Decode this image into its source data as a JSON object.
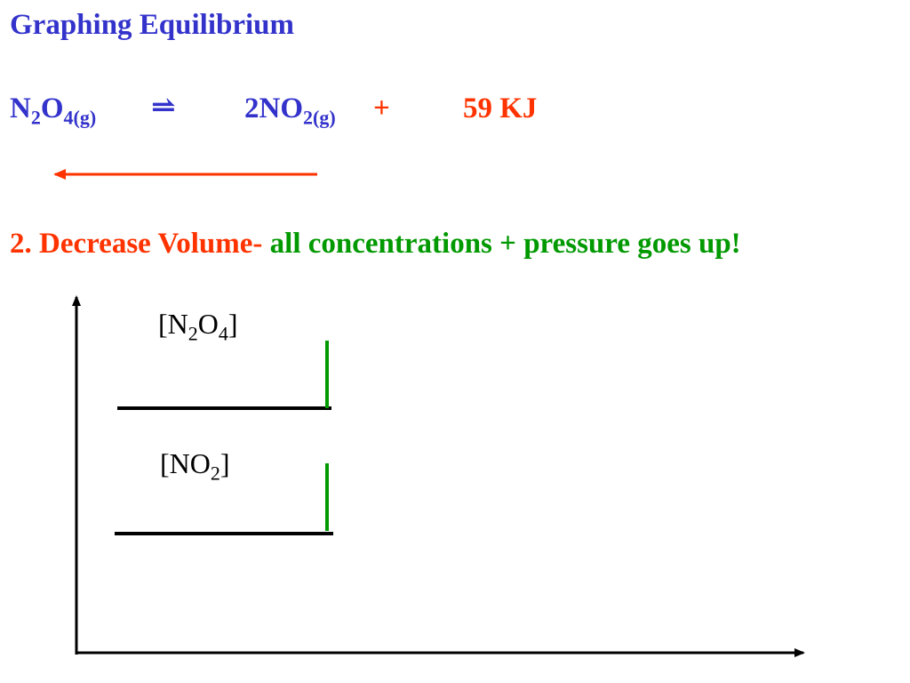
{
  "title": "Graphing Equilibrium",
  "equation": {
    "reactant_base": "N",
    "reactant_sub1": "2",
    "reactant_mid": "O",
    "reactant_sub2": "4(g)",
    "arrow": "⥬",
    "product_base": "2NO",
    "product_sub": "2(g)",
    "plus": "+",
    "energy": "59 KJ"
  },
  "shift_direction": "left",
  "statement": {
    "prefix": "2. Decrease Volume-",
    "suffix": "all concentrations + pressure goes up!"
  },
  "graph": {
    "label_n2o4": {
      "open": "[N",
      "sub1": "2",
      "mid": "O",
      "sub2": "4",
      "close": "]"
    },
    "label_no2": {
      "open": "[NO",
      "sub1": "2",
      "close": "]"
    }
  },
  "colors": {
    "title": "#3333cc",
    "energy": "#ff3300",
    "arrow": "#ff3300",
    "statement_prefix": "#ff3300",
    "statement_suffix": "#009900",
    "concentration_jump": "#009900",
    "axes": "#000000"
  }
}
